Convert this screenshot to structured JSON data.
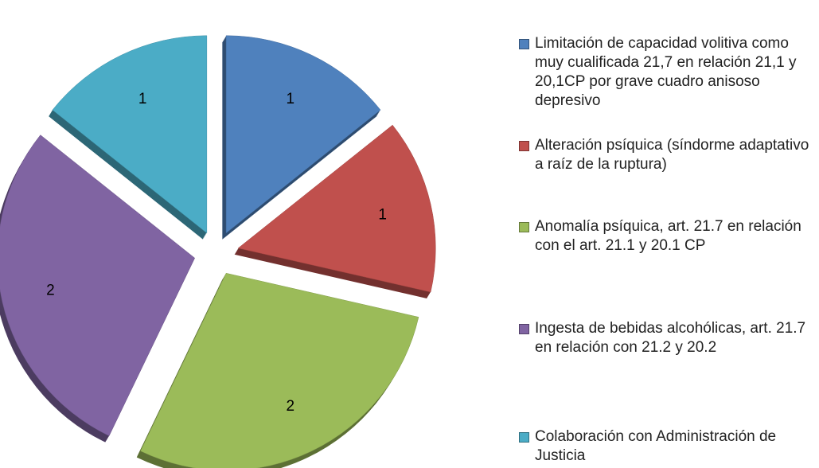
{
  "chart_data": {
    "type": "pie",
    "categories": [
      "Limitación de capacidad volitiva como muy cualificada 21,7 en relación 21,1 y 20,1CP por grave cuadro anisoso depresivo",
      "Alteración psíquica (síndorme adaptativo a raíz de la ruptura)",
      "Anomalía psíquica, art. 21.7 en relación con el art. 21.1 y 20.1 CP",
      "Ingesta de bebidas alcohólicas, art. 21.7 en relación con 21.2 y 20.2",
      "Colaboración con Administración de Justicia"
    ],
    "values": [
      1,
      1,
      2,
      2,
      1
    ],
    "colors": [
      "#4f81bd",
      "#c0504d",
      "#9bbb59",
      "#8064a2",
      "#4bacc6"
    ],
    "legend": "right"
  }
}
